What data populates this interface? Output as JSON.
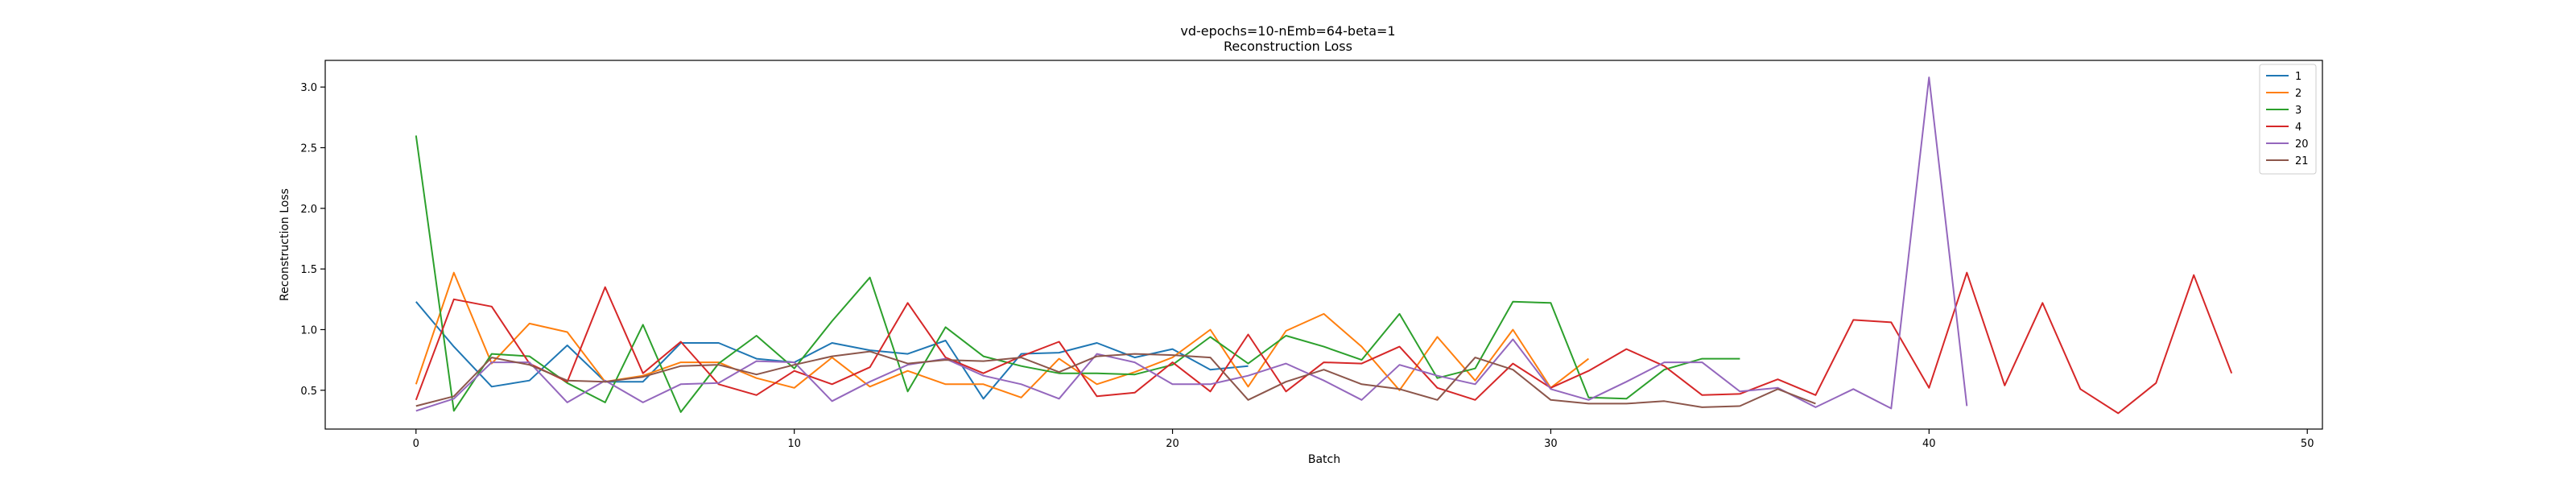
{
  "chart_data": {
    "type": "line",
    "title": "vd-epochs=10-nEmb=64-beta=1",
    "subtitle": "Reconstruction Loss",
    "xlabel": "Batch",
    "ylabel": "Reconstruction Loss",
    "xlim": [
      -2.4,
      50.4
    ],
    "ylim": [
      0.18,
      3.22
    ],
    "xticks": [
      0,
      10,
      20,
      30,
      40,
      50
    ],
    "yticks": [
      0.5,
      1.0,
      1.5,
      2.0,
      2.5,
      3.0
    ],
    "grid": false,
    "legend": "top-right",
    "series": [
      {
        "name": "1",
        "color": "#1f77b4",
        "values": [
          1.23,
          0.86,
          0.53,
          0.58,
          0.87,
          0.57,
          0.57,
          0.89,
          0.89,
          0.76,
          0.73,
          0.89,
          0.83,
          0.8,
          0.91,
          0.43,
          0.8,
          0.81,
          0.89,
          0.77,
          0.84,
          0.67,
          0.7
        ]
      },
      {
        "name": "2",
        "color": "#ff7f0e",
        "values": [
          0.55,
          1.47,
          0.72,
          1.05,
          0.98,
          0.57,
          0.62,
          0.73,
          0.73,
          0.6,
          0.52,
          0.77,
          0.53,
          0.66,
          0.55,
          0.55,
          0.44,
          0.76,
          0.55,
          0.65,
          0.77,
          1.0,
          0.53,
          0.99,
          1.13,
          0.86,
          0.5,
          0.94,
          0.58,
          1.0,
          0.52,
          0.76
        ]
      },
      {
        "name": "3",
        "color": "#2ca02c",
        "values": [
          2.6,
          0.33,
          0.8,
          0.78,
          0.56,
          0.4,
          1.04,
          0.32,
          0.72,
          0.95,
          0.68,
          1.07,
          1.43,
          0.49,
          1.02,
          0.78,
          0.7,
          0.64,
          0.64,
          0.63,
          0.71,
          0.94,
          0.72,
          0.95,
          0.86,
          0.75,
          1.13,
          0.6,
          0.68,
          1.23,
          1.22,
          0.44,
          0.43,
          0.67,
          0.76,
          0.76
        ]
      },
      {
        "name": "4",
        "color": "#d62728",
        "values": [
          0.42,
          1.25,
          1.19,
          0.72,
          0.57,
          1.35,
          0.64,
          0.9,
          0.55,
          0.46,
          0.66,
          0.55,
          0.69,
          1.22,
          0.77,
          0.64,
          0.78,
          0.9,
          0.45,
          0.48,
          0.73,
          0.49,
          0.96,
          0.49,
          0.73,
          0.72,
          0.86,
          0.52,
          0.42,
          0.72,
          0.52,
          0.66,
          0.84,
          0.7,
          0.46,
          0.47,
          0.59,
          0.46,
          1.08,
          1.06,
          0.52,
          1.47,
          0.54,
          1.22,
          0.51,
          0.31,
          0.56,
          1.45,
          0.64
        ]
      },
      {
        "name": "20",
        "color": "#9467bd",
        "values": [
          0.33,
          0.43,
          0.73,
          0.73,
          0.4,
          0.58,
          0.4,
          0.55,
          0.56,
          0.74,
          0.73,
          0.41,
          0.57,
          0.71,
          0.76,
          0.62,
          0.55,
          0.43,
          0.8,
          0.73,
          0.55,
          0.55,
          0.62,
          0.72,
          0.58,
          0.42,
          0.71,
          0.62,
          0.55,
          0.92,
          0.51,
          0.42,
          0.57,
          0.73,
          0.73,
          0.49,
          0.52,
          0.36,
          0.51,
          0.35,
          3.08,
          0.37
        ]
      },
      {
        "name": "21",
        "color": "#8c564b",
        "values": [
          0.37,
          0.45,
          0.77,
          0.71,
          0.58,
          0.57,
          0.61,
          0.7,
          0.71,
          0.63,
          0.71,
          0.78,
          0.82,
          0.72,
          0.75,
          0.74,
          0.77,
          0.65,
          0.78,
          0.8,
          0.79,
          0.77,
          0.42,
          0.57,
          0.67,
          0.55,
          0.51,
          0.42,
          0.77,
          0.67,
          0.42,
          0.39,
          0.39,
          0.41,
          0.36,
          0.37,
          0.51,
          0.39
        ]
      }
    ]
  }
}
